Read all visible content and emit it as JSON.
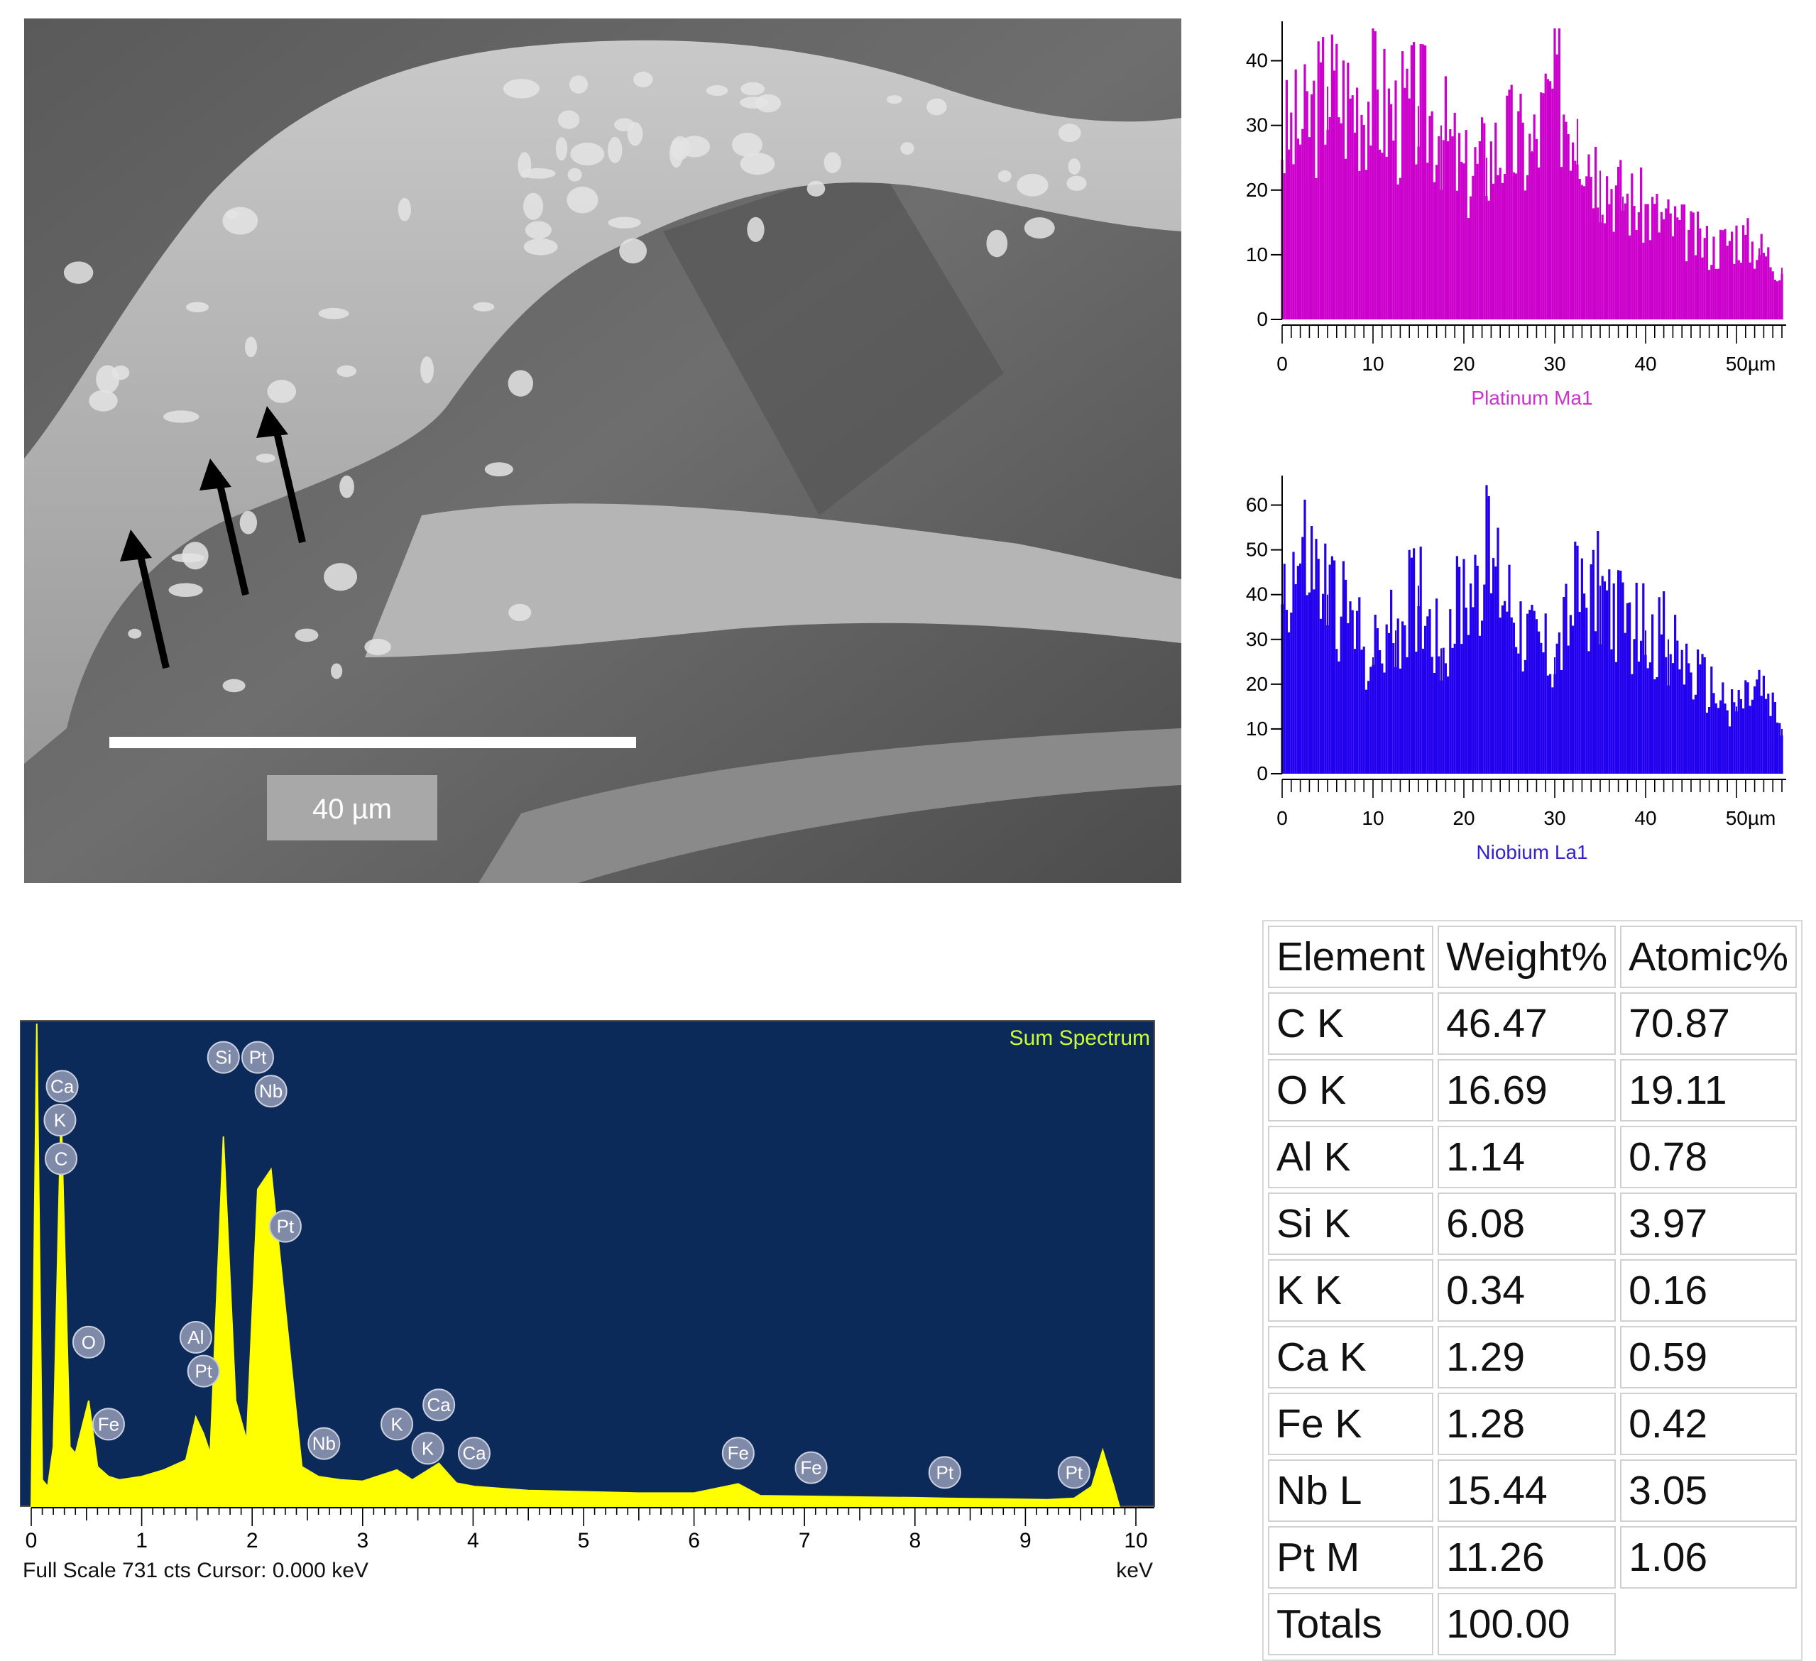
{
  "sem_image": {
    "scale_bar_label": "40 µm",
    "arrows": [
      "arrow-1",
      "arrow-2",
      "arrow-3"
    ]
  },
  "line_profiles": [
    {
      "title": "Platinum Ma1",
      "color": "#cc00cc",
      "label_color": "#cc33cc",
      "y_ticks": [
        "0",
        "10",
        "20",
        "30",
        "40"
      ],
      "ylim": [
        0,
        45
      ],
      "x_ticks": [
        "0",
        "10",
        "20",
        "30",
        "40",
        "50µm"
      ],
      "xlim": [
        0,
        55
      ]
    },
    {
      "title": "Niobium La1",
      "color": "#2200ee",
      "label_color": "#3322cc",
      "y_ticks": [
        "0",
        "10",
        "20",
        "30",
        "40",
        "50",
        "60"
      ],
      "ylim": [
        0,
        65
      ],
      "x_ticks": [
        "0",
        "10",
        "20",
        "30",
        "40",
        "50µm"
      ],
      "xlim": [
        0,
        55
      ]
    }
  ],
  "spectrum": {
    "title": "Sum Spectrum",
    "x_ticks": [
      "0",
      "1",
      "2",
      "3",
      "4",
      "5",
      "6",
      "7",
      "8",
      "9",
      "10"
    ],
    "xlim": [
      0,
      10
    ],
    "footer_left": "Full Scale 731 cts  Cursor: 0.000 keV",
    "footer_right": "keV",
    "background": "#0b2a5a",
    "fill": "#ffff00",
    "labels": [
      {
        "text": "Ca",
        "kev": 0.28,
        "level": 0.87
      },
      {
        "text": "K",
        "kev": 0.26,
        "level": 0.8
      },
      {
        "text": "C",
        "kev": 0.27,
        "level": 0.72
      },
      {
        "text": "Si",
        "kev": 1.74,
        "level": 0.93
      },
      {
        "text": "Pt",
        "kev": 2.05,
        "level": 0.93
      },
      {
        "text": "Nb",
        "kev": 2.17,
        "level": 0.86
      },
      {
        "text": "Pt",
        "kev": 2.3,
        "level": 0.58
      },
      {
        "text": "O",
        "kev": 0.52,
        "level": 0.34
      },
      {
        "text": "Al",
        "kev": 1.49,
        "level": 0.35
      },
      {
        "text": "Pt",
        "kev": 1.56,
        "level": 0.28
      },
      {
        "text": "Fe",
        "kev": 0.7,
        "level": 0.17
      },
      {
        "text": "Nb",
        "kev": 2.65,
        "level": 0.13
      },
      {
        "text": "K",
        "kev": 3.31,
        "level": 0.17
      },
      {
        "text": "Ca",
        "kev": 3.69,
        "level": 0.21
      },
      {
        "text": "K",
        "kev": 3.59,
        "level": 0.12
      },
      {
        "text": "Ca",
        "kev": 4.01,
        "level": 0.11
      },
      {
        "text": "Fe",
        "kev": 6.4,
        "level": 0.11
      },
      {
        "text": "Fe",
        "kev": 7.06,
        "level": 0.08
      },
      {
        "text": "Pt",
        "kev": 8.27,
        "level": 0.07
      },
      {
        "text": "Pt",
        "kev": 9.44,
        "level": 0.07
      }
    ]
  },
  "chart_data": [
    {
      "type": "bar",
      "title": "Platinum Ma1",
      "xlabel": "",
      "ylabel": "",
      "xlim": [
        0,
        55
      ],
      "ylim": [
        0,
        45
      ],
      "x": [
        0,
        2.5,
        5,
        7.5,
        10,
        12.5,
        15,
        17.5,
        20,
        22.5,
        25,
        27.5,
        30,
        32.5,
        35,
        37.5,
        40,
        42.5,
        45,
        47.5,
        50,
        52.5,
        55
      ],
      "values": [
        28,
        30,
        36,
        34,
        35,
        31,
        33,
        30,
        22,
        25,
        28,
        26,
        36,
        31,
        23,
        19,
        17,
        15,
        13,
        11,
        13,
        11,
        8
      ],
      "grid": false
    },
    {
      "type": "bar",
      "title": "Niobium La1",
      "xlabel": "",
      "ylabel": "",
      "xlim": [
        0,
        55
      ],
      "ylim": [
        0,
        65
      ],
      "x": [
        0,
        2.5,
        5,
        7.5,
        10,
        12.5,
        15,
        17.5,
        20,
        22.5,
        25,
        27.5,
        30,
        32.5,
        35,
        37.5,
        40,
        42.5,
        45,
        47.5,
        50,
        52.5,
        55
      ],
      "values": [
        42,
        48,
        40,
        34,
        26,
        32,
        42,
        28,
        40,
        48,
        40,
        30,
        26,
        40,
        42,
        33,
        32,
        30,
        22,
        18,
        15,
        19,
        10
      ],
      "grid": false
    },
    {
      "type": "area",
      "title": "Sum Spectrum",
      "xlabel": "keV",
      "ylabel": "",
      "xlim": [
        0,
        10
      ],
      "ylim": [
        0,
        731
      ],
      "x": [
        0,
        0.05,
        0.1,
        0.15,
        0.2,
        0.27,
        0.35,
        0.4,
        0.52,
        0.6,
        0.7,
        0.8,
        1.0,
        1.2,
        1.4,
        1.49,
        1.56,
        1.62,
        1.74,
        1.85,
        1.95,
        2.05,
        2.17,
        2.3,
        2.45,
        2.6,
        2.8,
        3.0,
        3.31,
        3.45,
        3.69,
        3.85,
        4.01,
        4.5,
        5.0,
        5.5,
        6.0,
        6.4,
        6.6,
        7.06,
        7.5,
        8.0,
        8.27,
        8.8,
        9.2,
        9.44,
        9.6,
        9.7,
        9.8,
        9.85
      ],
      "values": [
        0,
        731,
        40,
        30,
        90,
        600,
        90,
        80,
        160,
        60,
        45,
        40,
        45,
        55,
        70,
        135,
        110,
        80,
        560,
        160,
        100,
        480,
        510,
        300,
        60,
        45,
        40,
        38,
        55,
        40,
        65,
        35,
        30,
        24,
        22,
        20,
        20,
        34,
        16,
        15,
        14,
        13,
        12,
        11,
        10,
        12,
        30,
        85,
        30,
        0
      ],
      "grid": false
    },
    {
      "type": "table",
      "columns": [
        "Element",
        "Weight%",
        "Atomic%"
      ],
      "rows": [
        [
          "C K",
          "46.47",
          "70.87"
        ],
        [
          "O K",
          "16.69",
          "19.11"
        ],
        [
          "Al K",
          "1.14",
          "0.78"
        ],
        [
          "Si K",
          "6.08",
          "3.97"
        ],
        [
          "K K",
          "0.34",
          "0.16"
        ],
        [
          "Ca K",
          "1.29",
          "0.59"
        ],
        [
          "Fe K",
          "1.28",
          "0.42"
        ],
        [
          "Nb L",
          "15.44",
          "3.05"
        ],
        [
          "Pt M",
          "11.26",
          "1.06"
        ],
        [
          "Totals",
          "100.00",
          ""
        ]
      ]
    }
  ]
}
